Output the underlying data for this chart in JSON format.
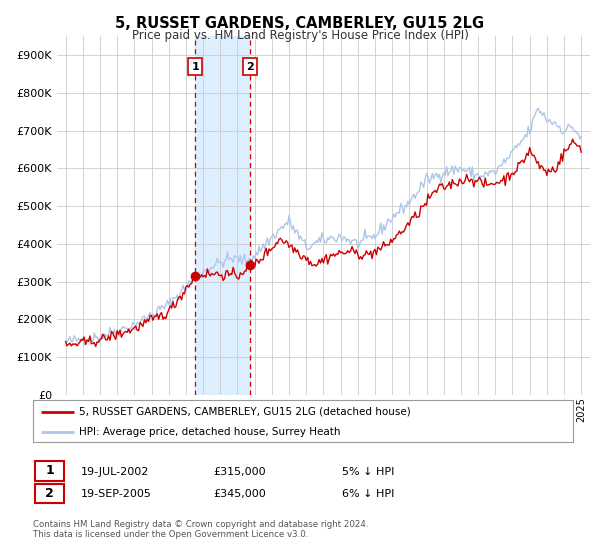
{
  "title": "5, RUSSET GARDENS, CAMBERLEY, GU15 2LG",
  "subtitle": "Price paid vs. HM Land Registry's House Price Index (HPI)",
  "legend_line1": "5, RUSSET GARDENS, CAMBERLEY, GU15 2LG (detached house)",
  "legend_line2": "HPI: Average price, detached house, Surrey Heath",
  "transaction1_date": "19-JUL-2002",
  "transaction1_price": "£315,000",
  "transaction1_hpi": "5% ↓ HPI",
  "transaction2_date": "19-SEP-2005",
  "transaction2_price": "£345,000",
  "transaction2_hpi": "6% ↓ HPI",
  "footer": "Contains HM Land Registry data © Crown copyright and database right 2024.\nThis data is licensed under the Open Government Licence v3.0.",
  "hpi_color": "#aec6e8",
  "price_color": "#cc0000",
  "point_color": "#cc0000",
  "vline_color": "#cc0000",
  "shade_color": "#ddeeff",
  "grid_color": "#cccccc",
  "background_color": "#ffffff",
  "ylim": [
    0,
    950000
  ],
  "yticks": [
    0,
    100000,
    200000,
    300000,
    400000,
    500000,
    600000,
    700000,
    800000,
    900000
  ],
  "xlim_start": 1994.5,
  "xlim_end": 2025.5,
  "transaction1_x": 2002.54,
  "transaction2_x": 2005.72,
  "transaction1_y": 315000,
  "transaction2_y": 345000,
  "hpi_anchors_x": [
    1995.0,
    1997.0,
    1999.0,
    2001.0,
    2002.5,
    2003.5,
    2004.5,
    2005.0,
    2005.5,
    2006.0,
    2007.5,
    2008.0,
    2009.0,
    2010.0,
    2011.0,
    2012.0,
    2013.0,
    2014.0,
    2015.0,
    2016.0,
    2017.0,
    2018.0,
    2019.0,
    2020.0,
    2021.0,
    2022.0,
    2022.5,
    2023.0,
    2023.5,
    2024.0,
    2024.5,
    2025.0
  ],
  "hpi_anchors_y": [
    140000,
    155000,
    185000,
    240000,
    310000,
    340000,
    360000,
    360000,
    355000,
    370000,
    440000,
    460000,
    390000,
    410000,
    420000,
    400000,
    420000,
    470000,
    510000,
    570000,
    590000,
    600000,
    580000,
    590000,
    640000,
    700000,
    760000,
    730000,
    720000,
    700000,
    710000,
    680000
  ],
  "price_anchors_x": [
    1995.0,
    1997.0,
    1999.0,
    2001.0,
    2002.54,
    2003.0,
    2004.0,
    2005.0,
    2005.72,
    2006.0,
    2007.0,
    2007.5,
    2008.5,
    2009.5,
    2010.5,
    2011.5,
    2012.5,
    2013.5,
    2014.5,
    2015.5,
    2016.5,
    2017.5,
    2018.5,
    2019.5,
    2020.5,
    2021.5,
    2022.0,
    2022.5,
    2023.0,
    2023.5,
    2024.0,
    2024.5,
    2025.0
  ],
  "price_anchors_y": [
    130000,
    145000,
    175000,
    220000,
    315000,
    320000,
    320000,
    315000,
    345000,
    345000,
    390000,
    415000,
    380000,
    345000,
    370000,
    380000,
    370000,
    390000,
    430000,
    480000,
    540000,
    560000,
    575000,
    555000,
    570000,
    610000,
    650000,
    610000,
    590000,
    600000,
    640000,
    670000,
    655000
  ],
  "noise_seed": 42,
  "noise_hpi": 8000,
  "noise_price": 7000
}
